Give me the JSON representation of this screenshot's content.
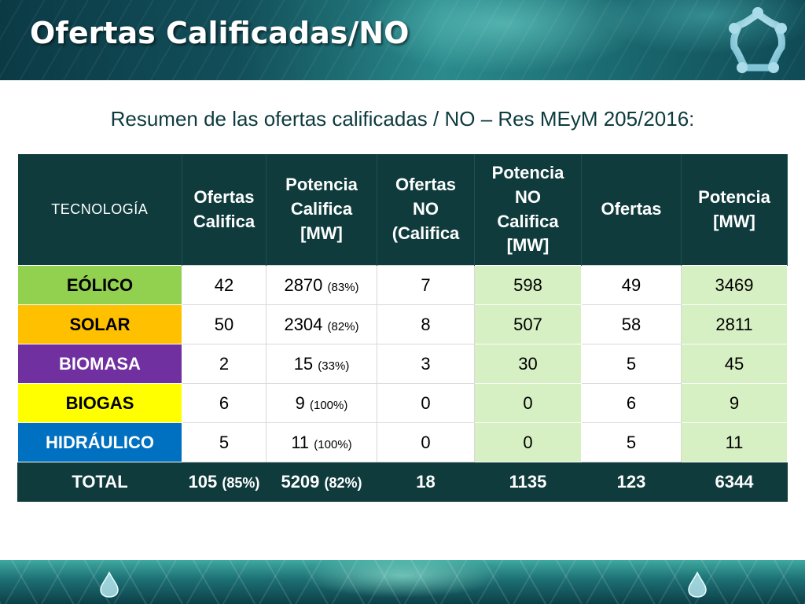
{
  "header": {
    "title": "Ofertas Calificadas/NO",
    "logo_icon": "star-ring-logo-icon"
  },
  "subtitle": "Resumen de las ofertas calificadas / NO – Res MEyM 205/2016:",
  "table": {
    "headers": [
      {
        "lines": [
          "TECNOLOGÍA"
        ]
      },
      {
        "lines": [
          "Ofertas",
          "Califica"
        ]
      },
      {
        "lines": [
          "Potencia",
          "Califica",
          "[MW]"
        ]
      },
      {
        "lines": [
          "Ofertas",
          "NO",
          "(Califica"
        ]
      },
      {
        "lines": [
          "Potencia",
          "NO",
          "Califica",
          "[MW]"
        ]
      },
      {
        "lines": [
          "Ofertas"
        ]
      },
      {
        "lines": [
          "Potencia",
          "[MW]"
        ]
      }
    ],
    "rows": [
      {
        "tech": "EÓLICO",
        "color": "#92d050",
        "text_color": "#000000",
        "ofertas_califica": "42",
        "ofertas_califica_pct": "",
        "potencia_califica": "2870",
        "potencia_califica_pct": "(83%)",
        "ofertas_no": "7",
        "potencia_no": "598",
        "ofertas": "49",
        "potencia": "3469"
      },
      {
        "tech": "SOLAR",
        "color": "#ffc000",
        "text_color": "#000000",
        "ofertas_califica": "50",
        "ofertas_califica_pct": "",
        "potencia_califica": "2304",
        "potencia_califica_pct": "(82%)",
        "ofertas_no": "8",
        "potencia_no": "507",
        "ofertas": "58",
        "potencia": "2811"
      },
      {
        "tech": "BIOMASA",
        "color": "#7030a0",
        "text_color": "#ffffff",
        "ofertas_califica": "2",
        "ofertas_califica_pct": "",
        "potencia_califica": "15",
        "potencia_califica_pct": "(33%)",
        "ofertas_no": "3",
        "potencia_no": "30",
        "ofertas": "5",
        "potencia": "45"
      },
      {
        "tech": "BIOGAS",
        "color": "#ffff00",
        "text_color": "#000000",
        "ofertas_califica": "6",
        "ofertas_califica_pct": "",
        "potencia_califica": "9",
        "potencia_califica_pct": "(100%)",
        "ofertas_no": "0",
        "potencia_no": "0",
        "ofertas": "6",
        "potencia": "9"
      },
      {
        "tech": "HIDRÁULICO",
        "color": "#0070c0",
        "text_color": "#ffffff",
        "ofertas_califica": "5",
        "ofertas_califica_pct": "",
        "potencia_califica": "11",
        "potencia_califica_pct": "(100%)",
        "ofertas_no": "0",
        "potencia_no": "0",
        "ofertas": "5",
        "potencia": "11"
      }
    ],
    "total": {
      "tech": "TOTAL",
      "ofertas_califica": "105",
      "ofertas_califica_pct": "(85%)",
      "potencia_califica": "5209",
      "potencia_califica_pct": "(82%)",
      "ofertas_no": "18",
      "potencia_no": "1135",
      "ofertas": "123",
      "potencia": "6344"
    }
  },
  "colors": {
    "header_bg": "#0f3b3c",
    "cell_green": "#d6efc3",
    "cell_white": "#ffffff"
  },
  "footer": {
    "left_icon": "water-drop-icon",
    "right_icon": "water-drop-icon"
  }
}
